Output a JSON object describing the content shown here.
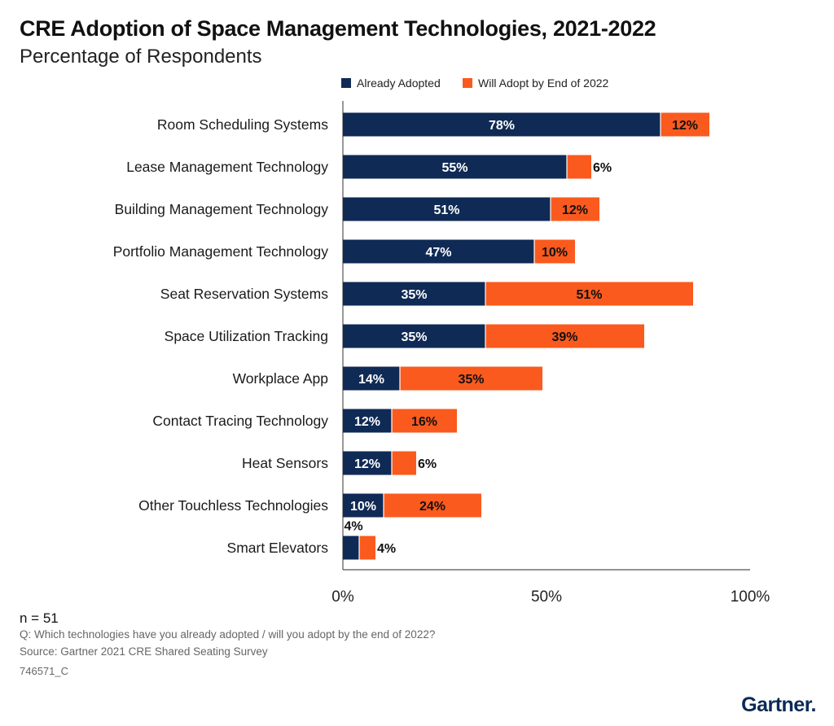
{
  "header": {
    "title": "CRE Adoption of Space Management Technologies, 2021-2022",
    "subtitle": "Percentage of Respondents"
  },
  "colors": {
    "adopted": "#0f2a55",
    "will_adopt": "#fa5a1e",
    "axis": "#555555"
  },
  "chart_data": {
    "type": "bar",
    "orientation": "horizontal",
    "stacked": true,
    "categories": [
      "Room Scheduling Systems",
      "Lease Management Technology",
      "Building Management Technology",
      "Portfolio Management Technology",
      "Seat Reservation Systems",
      "Space Utilization Tracking",
      "Workplace App",
      "Contact Tracing Technology",
      "Heat Sensors",
      "Other Touchless Technologies",
      "Smart Elevators"
    ],
    "series": [
      {
        "name": "Already Adopted",
        "values": [
          78,
          55,
          51,
          47,
          35,
          35,
          14,
          12,
          12,
          10,
          4
        ]
      },
      {
        "name": "Will Adopt by End of 2022",
        "values": [
          12,
          6,
          12,
          10,
          51,
          39,
          35,
          16,
          6,
          24,
          4
        ]
      }
    ],
    "value_suffix": "%",
    "xlim": [
      0,
      100
    ],
    "xticks": [
      0,
      50,
      100
    ],
    "xtick_labels": [
      "0%",
      "50%",
      "100%"
    ],
    "legend_position": "top",
    "grid": false
  },
  "footer": {
    "n": "n = 51",
    "question": "Q: Which technologies have you already adopted / will you adopt by the end of 2022?",
    "source": "Source: Gartner 2021 CRE Shared Seating Survey",
    "id": "746571_C",
    "brand": "Gartner."
  }
}
